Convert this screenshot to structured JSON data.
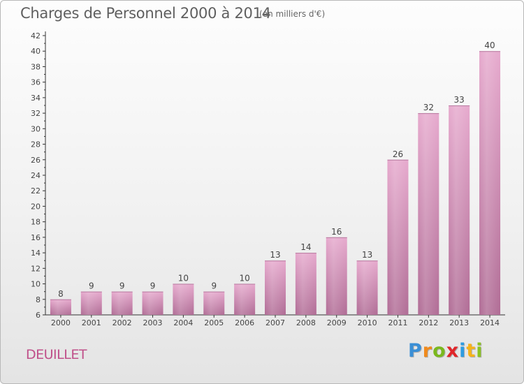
{
  "header": {
    "title": "Charges de Personnel 2000 à 2014",
    "subtitle": "(en milliers d'€)"
  },
  "footer": {
    "commune": "DEUILLET",
    "logo_letters": [
      {
        "char": "P",
        "color": "#3a8fd6"
      },
      {
        "char": "r",
        "color": "#f08a1c"
      },
      {
        "char": "o",
        "color": "#7ab81e"
      },
      {
        "char": "x",
        "color": "#e0262a"
      },
      {
        "char": "i",
        "color": "#2d9be0"
      },
      {
        "char": "t",
        "color": "#f5b31a"
      },
      {
        "char": "i",
        "color": "#8bc322"
      }
    ]
  },
  "chart_data": {
    "type": "bar",
    "title": "Charges de Personnel 2000 à 2014",
    "subtitle": "(en milliers d'€)",
    "categories": [
      "2000",
      "2001",
      "2002",
      "2003",
      "2004",
      "2005",
      "2006",
      "2007",
      "2008",
      "2009",
      "2010",
      "2011",
      "2012",
      "2013",
      "2014"
    ],
    "values": [
      8,
      9,
      9,
      9,
      10,
      9,
      10,
      13,
      14,
      16,
      13,
      26,
      32,
      33,
      40
    ],
    "ylim": [
      6,
      42
    ],
    "yticks": [
      6,
      8,
      10,
      12,
      14,
      16,
      18,
      20,
      22,
      24,
      26,
      28,
      30,
      32,
      34,
      36,
      38,
      40,
      42
    ],
    "grid": false,
    "bar_color": "#d88ab6"
  }
}
